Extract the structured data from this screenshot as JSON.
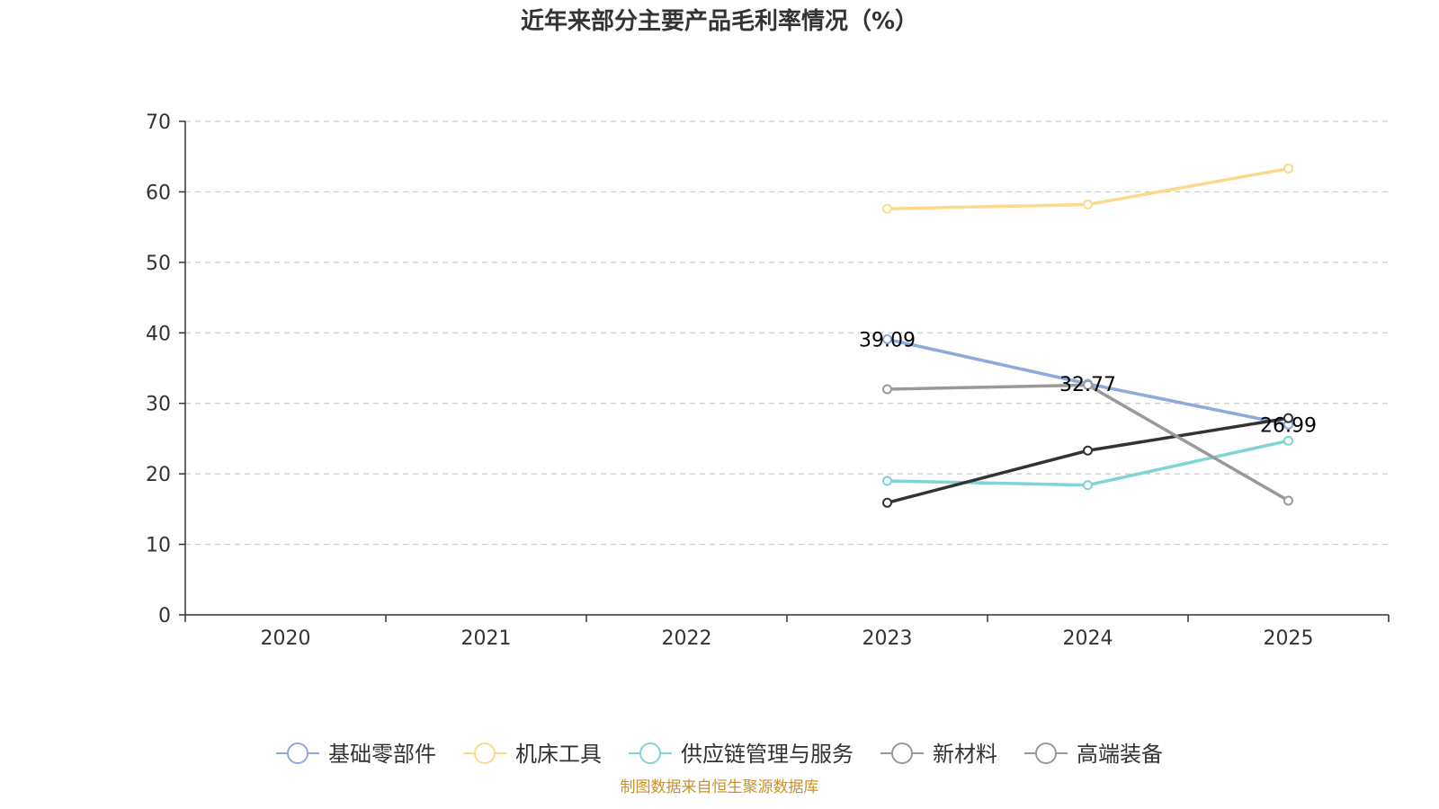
{
  "chart_data": {
    "type": "line",
    "title": "近年来部分主要产品毛利率情况（%）",
    "categories": [
      "2020",
      "2021",
      "2022",
      "2023",
      "2024",
      "2025"
    ],
    "ylim": [
      0,
      70
    ],
    "yticks": [
      0,
      10,
      20,
      30,
      40,
      50,
      60,
      70
    ],
    "grid": true,
    "legend_position": "bottom",
    "series": [
      {
        "name": "基础零部件",
        "color": "#8ea9db",
        "values": [
          null,
          null,
          null,
          39.09,
          32.77,
          26.99
        ],
        "labeled": true
      },
      {
        "name": "机床工具",
        "color": "#fdd98e",
        "values": [
          null,
          null,
          null,
          57.6,
          58.2,
          63.3
        ],
        "labeled": false
      },
      {
        "name": "供应链管理与服务",
        "color": "#7fd4d4",
        "values": [
          null,
          null,
          null,
          19.0,
          18.4,
          24.7
        ],
        "labeled": false
      },
      {
        "name": "新材料",
        "color": "#333333",
        "values": [
          null,
          null,
          null,
          15.9,
          23.3,
          27.9
        ],
        "labeled": false,
        "legend_color": "#999999"
      },
      {
        "name": "高端装备",
        "color": "#999999",
        "values": [
          null,
          null,
          null,
          32.0,
          32.6,
          16.2
        ],
        "labeled": false
      }
    ],
    "source": "制图数据来自恒生聚源数据库"
  }
}
